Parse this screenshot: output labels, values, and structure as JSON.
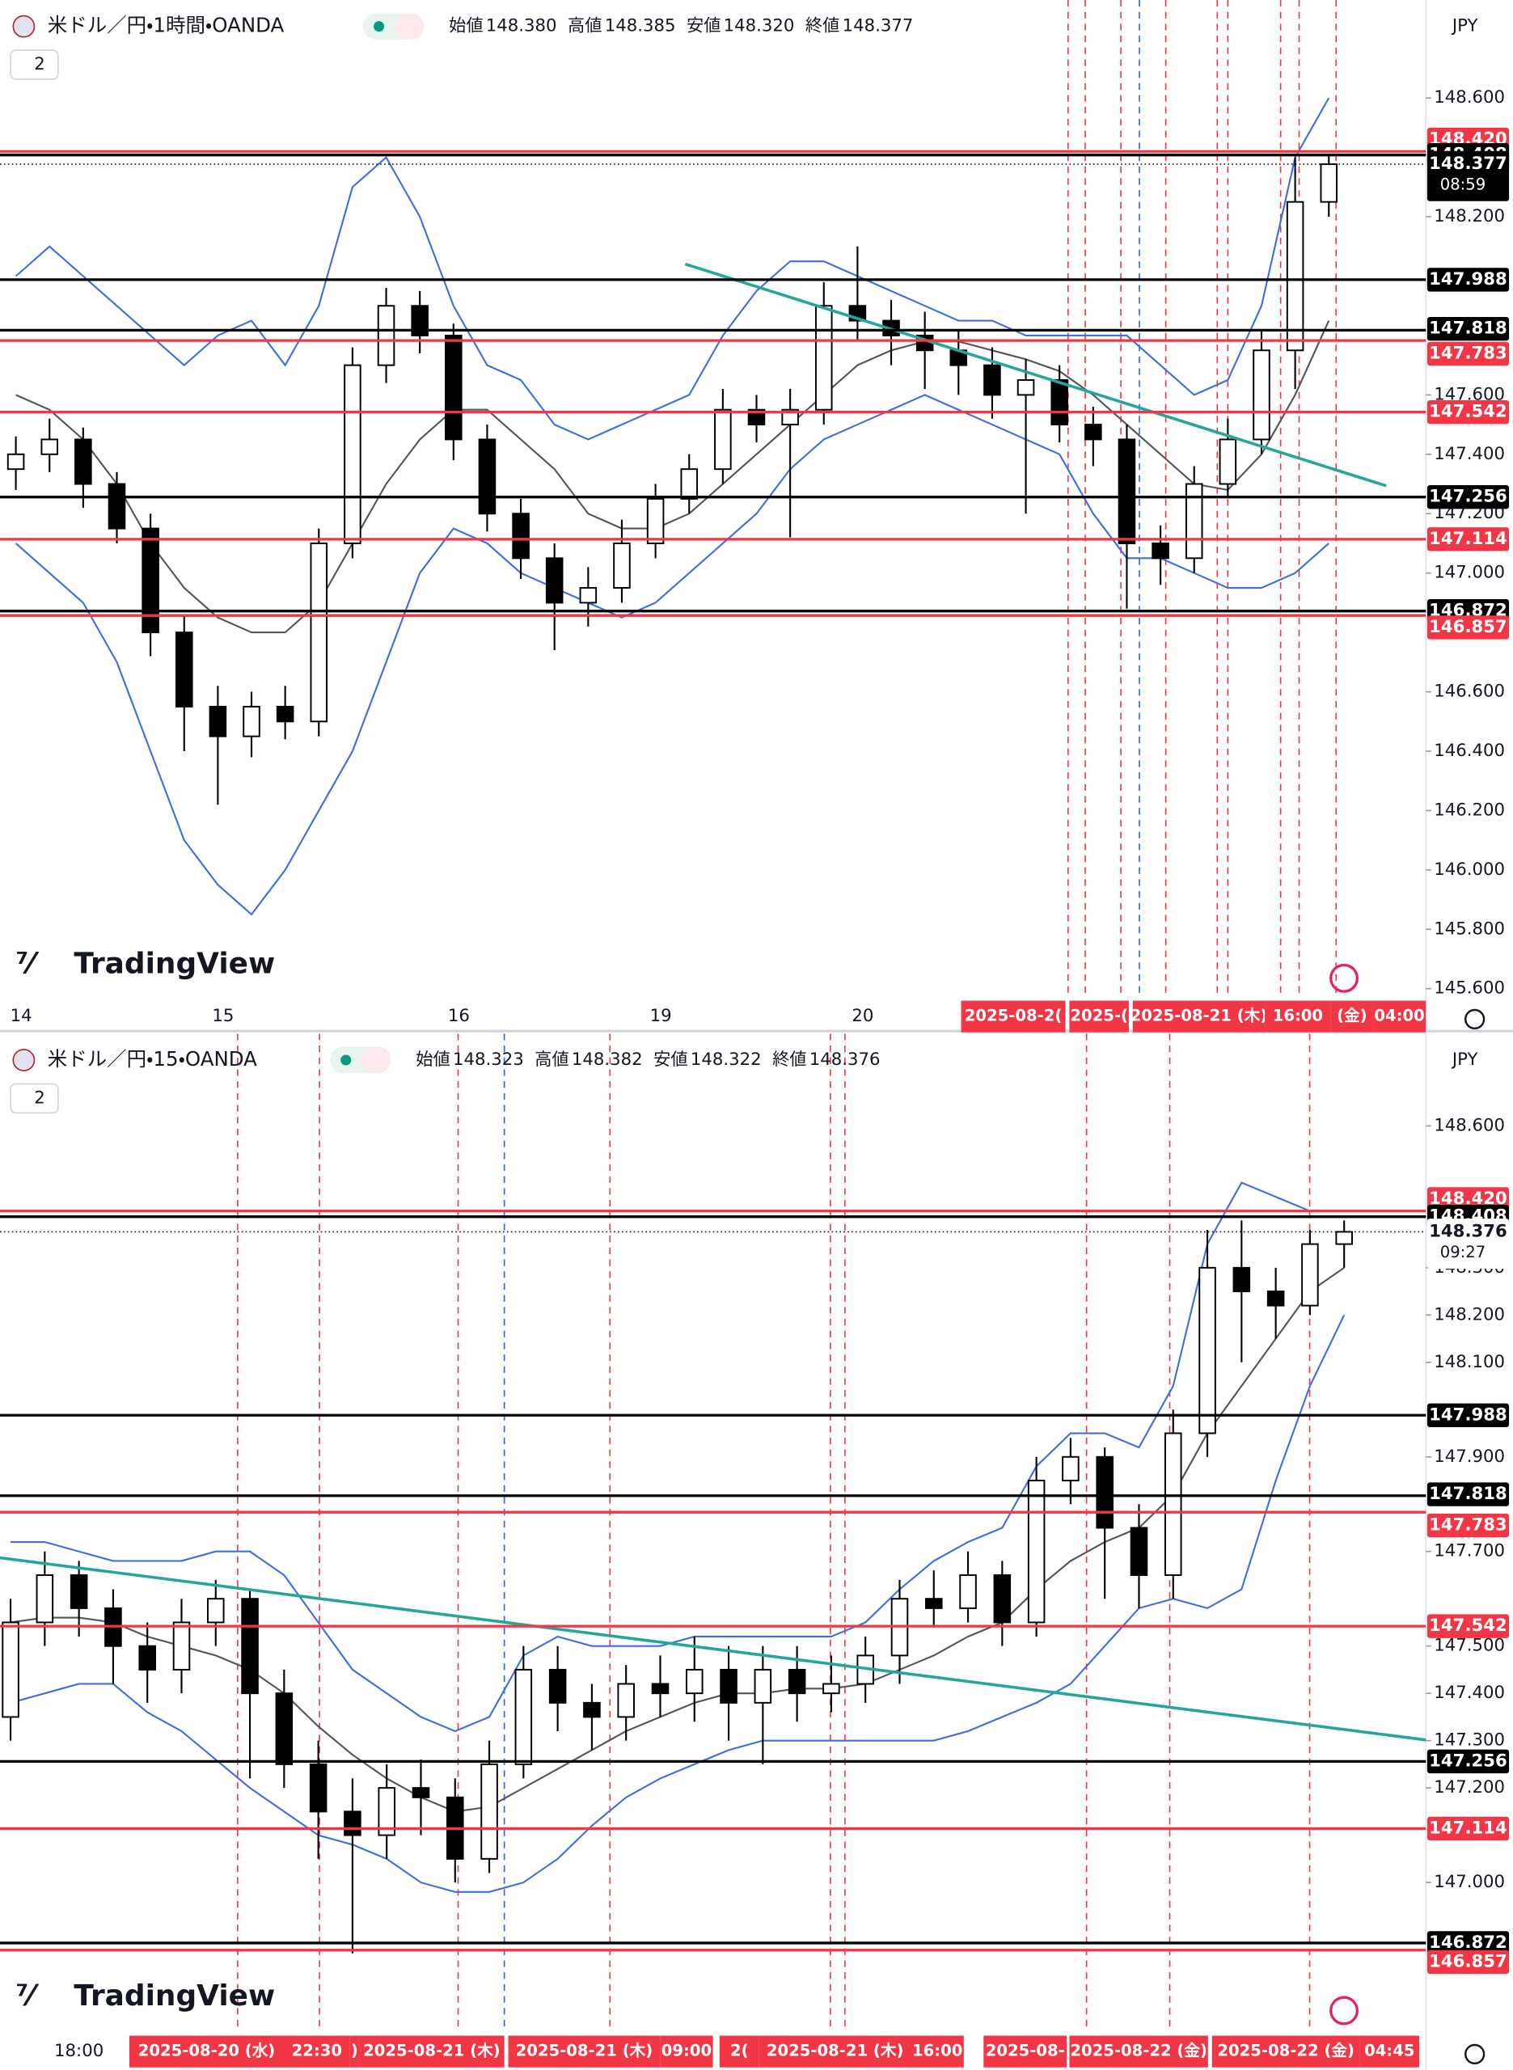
{
  "chart_data": [
    {
      "type": "candlestick",
      "title": "米ドル／円・1時間・OANDA",
      "ohlc_labels": [
        {
          "label": "始値",
          "value": "148.380"
        },
        {
          "label": "高値",
          "value": "148.385"
        },
        {
          "label": "安値",
          "value": "148.320"
        },
        {
          "label": "終値",
          "value": "148.377"
        }
      ],
      "indicator": "2",
      "currency": "JPY",
      "logo": "TradingView",
      "categories": [
        "14",
        null,
        null,
        null,
        null,
        null,
        "15",
        null,
        null,
        null,
        null,
        null,
        null,
        "16",
        null,
        null,
        null,
        null,
        null,
        "19",
        null,
        null,
        null,
        null,
        null,
        "20",
        null,
        null,
        null,
        null,
        null,
        null,
        null,
        null,
        null,
        null,
        null,
        null,
        null,
        null
      ],
      "open": [
        147.35,
        147.4,
        147.45,
        147.3,
        147.15,
        146.8,
        146.55,
        146.45,
        146.55,
        146.5,
        147.1,
        147.7,
        147.9,
        147.8,
        147.45,
        147.2,
        147.05,
        146.9,
        146.95,
        147.1,
        147.25,
        147.35,
        147.55,
        147.5,
        147.55,
        147.9,
        147.85,
        147.8,
        147.75,
        147.7,
        147.6,
        147.65,
        147.5,
        147.45,
        147.1,
        147.05,
        147.3,
        147.45,
        147.75,
        148.25
      ],
      "high": [
        147.46,
        147.52,
        147.49,
        147.34,
        147.2,
        146.86,
        146.62,
        146.6,
        146.62,
        147.15,
        147.76,
        147.96,
        147.95,
        147.84,
        147.5,
        147.25,
        147.1,
        147.02,
        147.18,
        147.3,
        147.4,
        147.62,
        147.6,
        147.62,
        147.98,
        148.1,
        147.92,
        147.88,
        147.82,
        147.76,
        147.72,
        147.7,
        147.56,
        147.5,
        147.16,
        147.36,
        147.52,
        147.82,
        148.4,
        148.408
      ],
      "low": [
        147.28,
        147.34,
        147.22,
        147.1,
        146.72,
        146.4,
        146.22,
        146.38,
        146.44,
        146.45,
        147.05,
        147.64,
        147.74,
        147.38,
        147.14,
        146.98,
        146.74,
        146.82,
        146.9,
        147.05,
        147.2,
        147.3,
        147.44,
        147.12,
        147.5,
        147.78,
        147.7,
        147.62,
        147.6,
        147.52,
        147.2,
        147.44,
        147.36,
        146.88,
        146.96,
        147.0,
        147.26,
        147.4,
        147.62,
        148.2
      ],
      "close": [
        147.4,
        147.45,
        147.3,
        147.15,
        146.8,
        146.55,
        146.45,
        146.55,
        146.5,
        147.1,
        147.7,
        147.9,
        147.8,
        147.45,
        147.2,
        147.05,
        146.9,
        146.95,
        147.1,
        147.25,
        147.35,
        147.55,
        147.5,
        147.55,
        147.9,
        147.85,
        147.8,
        147.75,
        147.7,
        147.6,
        147.65,
        147.5,
        147.45,
        147.1,
        147.05,
        147.3,
        147.45,
        147.75,
        148.25,
        148.377
      ],
      "lines": [
        {
          "color": "#555555",
          "values": [
            147.6,
            147.55,
            147.45,
            147.3,
            147.1,
            146.95,
            146.85,
            146.8,
            146.8,
            146.9,
            147.1,
            147.3,
            147.45,
            147.55,
            147.55,
            147.45,
            147.35,
            147.2,
            147.15,
            147.15,
            147.2,
            147.3,
            147.4,
            147.5,
            147.6,
            147.7,
            147.75,
            147.78,
            147.78,
            147.75,
            147.72,
            147.68,
            147.6,
            147.5,
            147.4,
            147.3,
            147.28,
            147.4,
            147.6,
            147.85
          ]
        },
        {
          "color": "#3d6fe0",
          "values": [
            148.0,
            148.1,
            148.0,
            147.9,
            147.8,
            147.7,
            147.8,
            147.85,
            147.7,
            147.9,
            148.3,
            148.4,
            148.2,
            147.9,
            147.7,
            147.65,
            147.5,
            147.45,
            147.5,
            147.55,
            147.6,
            147.8,
            147.95,
            148.05,
            148.05,
            148.0,
            147.95,
            147.9,
            147.85,
            147.85,
            147.8,
            147.8,
            147.8,
            147.8,
            147.7,
            147.6,
            147.65,
            147.9,
            148.4,
            148.6
          ]
        },
        {
          "color": "#3d6fe0",
          "values": [
            147.1,
            147.0,
            146.9,
            146.7,
            146.4,
            146.1,
            145.95,
            145.85,
            146.0,
            146.2,
            146.4,
            146.7,
            147.0,
            147.15,
            147.1,
            147.0,
            146.95,
            146.9,
            146.85,
            146.9,
            147.0,
            147.1,
            147.2,
            147.35,
            147.45,
            147.5,
            147.55,
            147.6,
            147.55,
            147.5,
            147.45,
            147.4,
            147.2,
            147.05,
            147.05,
            147.0,
            146.95,
            146.95,
            147.0,
            147.1
          ]
        }
      ],
      "ylim": [
        145.573,
        148.93
      ],
      "yticks": [
        {
          "value": 148.6,
          "label": "148.600"
        },
        {
          "value": 148.2,
          "label": "148.200"
        },
        {
          "value": 147.6,
          "label": "147.600"
        },
        {
          "value": 147.4,
          "label": "147.400"
        },
        {
          "value": 147.2,
          "label": "147.200"
        },
        {
          "value": 147.0,
          "label": "147.000"
        },
        {
          "value": 146.6,
          "label": "146.600"
        },
        {
          "value": 146.4,
          "label": "146.400"
        },
        {
          "value": 146.2,
          "label": "146.200"
        },
        {
          "value": 146.0,
          "label": "146.000"
        },
        {
          "value": 145.8,
          "label": "145.800"
        },
        {
          "value": 145.6,
          "label": "145.600"
        }
      ],
      "levels": [
        {
          "value": 148.42,
          "label": "148.420",
          "color": "#f23645"
        },
        {
          "value": 148.408,
          "label": "148.408",
          "color": "#000000"
        },
        {
          "value": 147.988,
          "label": "147.988",
          "color": "#000000"
        },
        {
          "value": 147.818,
          "label": "147.818",
          "color": "#000000"
        },
        {
          "value": 147.783,
          "label": "147.783",
          "color": "#f23645"
        },
        {
          "value": 147.542,
          "label": "147.542",
          "color": "#f23645"
        },
        {
          "value": 147.256,
          "label": "147.256",
          "color": "#000000"
        },
        {
          "value": 147.114,
          "label": "147.114",
          "color": "#f23645"
        },
        {
          "value": 146.872,
          "label": "146.872",
          "color": "#000000"
        },
        {
          "value": 146.857,
          "label": "146.857",
          "color": "#f23645"
        }
      ],
      "last": {
        "value": 148.377,
        "label": "148.377",
        "countdown": "08:59"
      },
      "time_markers": [
        "2025-08-2(",
        "2025-(",
        "2025-08-21 (木)",
        "16:00",
        "(金)",
        "04:00"
      ]
    },
    {
      "type": "candlestick",
      "title": "米ドル／円・15・OANDA",
      "ohlc_labels": [
        {
          "label": "始値",
          "value": "148.323"
        },
        {
          "label": "高値",
          "value": "148.382"
        },
        {
          "label": "安値",
          "value": "148.322"
        },
        {
          "label": "終値",
          "value": "148.376"
        }
      ],
      "indicator": "2",
      "currency": "JPY",
      "logo": "TradingView",
      "categories": [
        null,
        null,
        "18:00",
        null,
        null,
        null,
        null,
        null,
        null,
        null,
        null,
        null,
        null,
        null,
        null,
        null,
        null,
        null,
        null,
        null,
        null,
        null,
        null,
        null,
        null,
        null,
        null,
        null,
        null,
        null,
        null,
        null,
        null,
        null,
        null,
        null,
        null,
        null,
        null,
        null
      ],
      "open": [
        147.35,
        147.55,
        147.65,
        147.58,
        147.5,
        147.45,
        147.55,
        147.6,
        147.4,
        147.25,
        147.15,
        147.1,
        147.2,
        147.18,
        147.05,
        147.25,
        147.45,
        147.38,
        147.35,
        147.42,
        147.4,
        147.45,
        147.38,
        147.45,
        147.4,
        147.42,
        147.48,
        147.6,
        147.58,
        147.65,
        147.55,
        147.85,
        147.9,
        147.75,
        147.65,
        147.95,
        148.3,
        148.25,
        148.22,
        148.35
      ],
      "high": [
        147.6,
        147.7,
        147.68,
        147.62,
        147.55,
        147.6,
        147.64,
        147.62,
        147.45,
        147.3,
        147.22,
        147.25,
        147.26,
        147.22,
        147.3,
        147.5,
        147.5,
        147.42,
        147.46,
        147.48,
        147.52,
        147.5,
        147.5,
        147.5,
        147.48,
        147.52,
        147.64,
        147.66,
        147.7,
        147.68,
        147.9,
        147.94,
        147.92,
        147.8,
        148.0,
        148.38,
        148.4,
        148.3,
        148.38,
        148.4
      ],
      "low": [
        147.3,
        147.5,
        147.52,
        147.42,
        147.38,
        147.4,
        147.5,
        147.22,
        147.2,
        147.05,
        146.85,
        147.05,
        147.1,
        147.0,
        147.02,
        147.22,
        147.32,
        147.28,
        147.3,
        147.35,
        147.34,
        147.3,
        147.25,
        147.34,
        147.36,
        147.38,
        147.42,
        147.54,
        147.55,
        147.5,
        147.52,
        147.8,
        147.6,
        147.58,
        147.6,
        147.9,
        148.1,
        148.15,
        148.2,
        148.3
      ],
      "close": [
        147.55,
        147.65,
        147.58,
        147.5,
        147.45,
        147.55,
        147.6,
        147.4,
        147.25,
        147.15,
        147.1,
        147.2,
        147.18,
        147.05,
        147.25,
        147.45,
        147.38,
        147.35,
        147.42,
        147.4,
        147.45,
        147.38,
        147.45,
        147.4,
        147.42,
        147.48,
        147.6,
        147.58,
        147.65,
        147.55,
        147.85,
        147.9,
        147.75,
        147.65,
        147.95,
        148.3,
        148.25,
        148.22,
        148.35,
        148.376
      ],
      "lines": [
        {
          "color": "#555555",
          "values": [
            147.55,
            147.56,
            147.56,
            147.55,
            147.52,
            147.5,
            147.48,
            147.45,
            147.4,
            147.33,
            147.27,
            147.22,
            147.18,
            147.15,
            147.16,
            147.2,
            147.24,
            147.28,
            147.32,
            147.35,
            147.38,
            147.4,
            147.4,
            147.41,
            147.41,
            147.42,
            147.45,
            147.48,
            147.52,
            147.55,
            147.62,
            147.68,
            147.72,
            147.75,
            147.82,
            147.95,
            148.05,
            148.15,
            148.25,
            148.3
          ]
        },
        {
          "color": "#3d6fe0",
          "values": [
            147.72,
            147.72,
            147.7,
            147.68,
            147.68,
            147.68,
            147.7,
            147.7,
            147.65,
            147.55,
            147.45,
            147.4,
            147.35,
            147.32,
            147.35,
            147.48,
            147.52,
            147.5,
            147.5,
            147.5,
            147.52,
            147.52,
            147.52,
            147.52,
            147.52,
            147.55,
            147.62,
            147.68,
            147.72,
            147.75,
            147.88,
            147.95,
            147.95,
            147.92,
            148.05,
            148.35,
            148.48,
            148.45,
            148.42,
            148.42
          ]
        },
        {
          "color": "#3d6fe0",
          "values": [
            147.38,
            147.4,
            147.42,
            147.42,
            147.36,
            147.32,
            147.26,
            147.2,
            147.15,
            147.1,
            147.08,
            147.05,
            147.0,
            146.98,
            146.98,
            147.0,
            147.05,
            147.12,
            147.18,
            147.22,
            147.25,
            147.28,
            147.3,
            147.3,
            147.3,
            147.3,
            147.3,
            147.3,
            147.32,
            147.35,
            147.38,
            147.42,
            147.5,
            147.58,
            147.6,
            147.58,
            147.62,
            147.85,
            148.05,
            148.2
          ]
        }
      ],
      "ylim": [
        146.69,
        148.795
      ],
      "yticks": [
        {
          "value": 148.6,
          "label": "148.600"
        },
        {
          "value": 148.3,
          "label": "148.300"
        },
        {
          "value": 148.2,
          "label": "148.200"
        },
        {
          "value": 148.1,
          "label": "148.100"
        },
        {
          "value": 147.9,
          "label": "147.900"
        },
        {
          "value": 147.7,
          "label": "147.700"
        },
        {
          "value": 147.5,
          "label": "147.500"
        },
        {
          "value": 147.4,
          "label": "147.400"
        },
        {
          "value": 147.3,
          "label": "147.300"
        },
        {
          "value": 147.2,
          "label": "147.200"
        },
        {
          "value": 147.0,
          "label": "147.000"
        }
      ],
      "levels": [
        {
          "value": 148.42,
          "label": "148.420",
          "color": "#f23645"
        },
        {
          "value": 148.408,
          "label": "148.408",
          "color": "#000000"
        },
        {
          "value": 147.988,
          "label": "147.988",
          "color": "#000000"
        },
        {
          "value": 147.818,
          "label": "147.818",
          "color": "#000000"
        },
        {
          "value": 147.783,
          "label": "147.783",
          "color": "#f23645"
        },
        {
          "value": 147.542,
          "label": "147.542",
          "color": "#f23645"
        },
        {
          "value": 147.256,
          "label": "147.256",
          "color": "#000000"
        },
        {
          "value": 147.114,
          "label": "147.114",
          "color": "#f23645"
        },
        {
          "value": 146.872,
          "label": "146.872",
          "color": "#000000"
        },
        {
          "value": 146.857,
          "label": "146.857",
          "color": "#f23645"
        }
      ],
      "last": {
        "value": 148.376,
        "label": "148.376",
        "countdown": "09:27"
      },
      "time_markers": [
        "2025-08-20 (水)",
        "22:30",
        ")",
        "2025-08-21 (木)",
        "2025-08-21 (木)",
        "09:00",
        "2(",
        "2025-08-21 (木)",
        "16:00",
        "2025-08-",
        "2025-08-22 (金)",
        "2025-08-22 (金)",
        "04:45"
      ]
    }
  ]
}
